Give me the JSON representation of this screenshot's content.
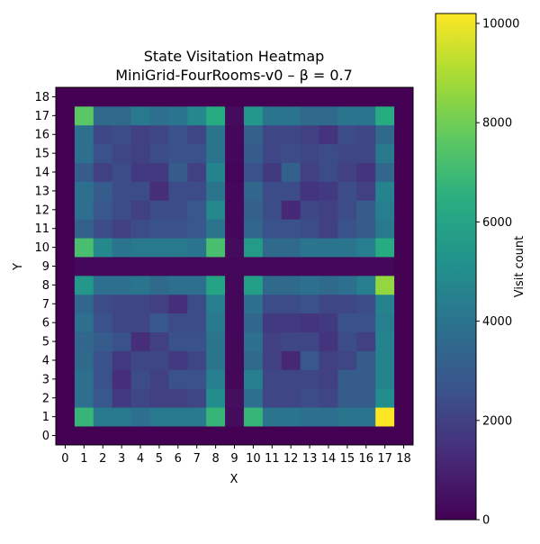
{
  "chart_data": {
    "type": "heatmap",
    "title": "State Visitation Heatmap",
    "subtitle": "MiniGrid-FourRooms-v0 – β = 0.7",
    "xlabel": "X",
    "ylabel": "Y",
    "colorbar_label": "Visit count",
    "colormap": "viridis",
    "vmin": 0,
    "vmax": 10200,
    "colorbar_ticks": [
      0,
      2000,
      4000,
      6000,
      8000,
      10000
    ],
    "x_ticks": [
      0,
      1,
      2,
      3,
      4,
      5,
      6,
      7,
      8,
      9,
      10,
      11,
      12,
      13,
      14,
      15,
      16,
      17,
      18
    ],
    "y_ticks": [
      0,
      1,
      2,
      3,
      4,
      5,
      6,
      7,
      8,
      9,
      10,
      11,
      12,
      13,
      14,
      15,
      16,
      17,
      18
    ],
    "grid_rows_y_ascending": [
      [
        0,
        0,
        0,
        0,
        0,
        0,
        0,
        0,
        0,
        0,
        0,
        0,
        0,
        0,
        0,
        0,
        0,
        0,
        0
      ],
      [
        0,
        6800,
        4200,
        4200,
        3800,
        4200,
        4200,
        4200,
        6800,
        300,
        6800,
        4000,
        4000,
        3800,
        3800,
        4000,
        4000,
        10200,
        0
      ],
      [
        0,
        3800,
        2800,
        1800,
        2200,
        2000,
        2000,
        2200,
        5000,
        400,
        3800,
        2200,
        2200,
        2400,
        2200,
        3000,
        3000,
        5000,
        0
      ],
      [
        0,
        3800,
        2600,
        1400,
        2400,
        2000,
        2600,
        2600,
        4400,
        200,
        4400,
        2200,
        2200,
        2200,
        2000,
        3000,
        3000,
        4600,
        0
      ],
      [
        0,
        3600,
        2600,
        1800,
        2200,
        2200,
        1800,
        2200,
        4000,
        200,
        3600,
        2000,
        1200,
        2800,
        2000,
        2200,
        3000,
        4600,
        0
      ],
      [
        0,
        3400,
        3000,
        2600,
        1400,
        2000,
        2600,
        2600,
        4000,
        200,
        3800,
        2000,
        2200,
        2200,
        1600,
        2400,
        2000,
        4600,
        0
      ],
      [
        0,
        3800,
        2600,
        2200,
        2200,
        2800,
        2400,
        2400,
        4200,
        200,
        3400,
        1800,
        1800,
        1600,
        1800,
        2600,
        2600,
        4400,
        0
      ],
      [
        0,
        3400,
        2400,
        2200,
        2200,
        2000,
        1400,
        2400,
        4400,
        200,
        3800,
        2400,
        2400,
        2600,
        2200,
        2200,
        2400,
        4600,
        0
      ],
      [
        0,
        5400,
        3800,
        3800,
        4000,
        3600,
        3800,
        3800,
        6000,
        200,
        5800,
        3600,
        3600,
        3800,
        3600,
        3800,
        4400,
        8600,
        0
      ],
      [
        0,
        200,
        200,
        200,
        200,
        200,
        200,
        200,
        200,
        200,
        200,
        200,
        200,
        200,
        200,
        200,
        200,
        200,
        0
      ],
      [
        0,
        7200,
        4800,
        4000,
        4200,
        4200,
        4200,
        4000,
        7200,
        300,
        5600,
        3600,
        3600,
        4000,
        4000,
        4000,
        4400,
        6400,
        0
      ],
      [
        0,
        3200,
        2400,
        2000,
        2400,
        2600,
        2600,
        2800,
        4000,
        200,
        3400,
        2600,
        2600,
        2400,
        2000,
        2600,
        3000,
        4200,
        0
      ],
      [
        0,
        3800,
        2800,
        2400,
        2000,
        2400,
        2400,
        2800,
        4800,
        200,
        3200,
        2400,
        1200,
        2200,
        2000,
        2400,
        3000,
        4400,
        0
      ],
      [
        0,
        3800,
        3000,
        2400,
        2400,
        1400,
        2400,
        2400,
        4000,
        200,
        3400,
        2400,
        2400,
        1600,
        1800,
        2400,
        2000,
        4600,
        0
      ],
      [
        0,
        3000,
        2000,
        2400,
        1800,
        1800,
        3000,
        2000,
        4600,
        100,
        2600,
        1800,
        3200,
        2000,
        2400,
        2000,
        1600,
        3400,
        0
      ],
      [
        0,
        3800,
        2600,
        2200,
        2000,
        2400,
        2600,
        2600,
        4000,
        200,
        3000,
        2200,
        2400,
        2200,
        2400,
        2200,
        2200,
        4200,
        0
      ],
      [
        0,
        3800,
        2200,
        2400,
        2000,
        2200,
        2600,
        2200,
        4000,
        200,
        3200,
        2200,
        2200,
        2000,
        1600,
        2400,
        2200,
        3600,
        0
      ],
      [
        0,
        7600,
        3600,
        3600,
        4200,
        3800,
        4000,
        4800,
        6400,
        300,
        5400,
        4000,
        4000,
        3600,
        3600,
        4000,
        4000,
        6400,
        0
      ],
      [
        0,
        0,
        0,
        0,
        0,
        0,
        0,
        0,
        0,
        0,
        0,
        0,
        0,
        0,
        0,
        0,
        0,
        0,
        0
      ]
    ]
  }
}
